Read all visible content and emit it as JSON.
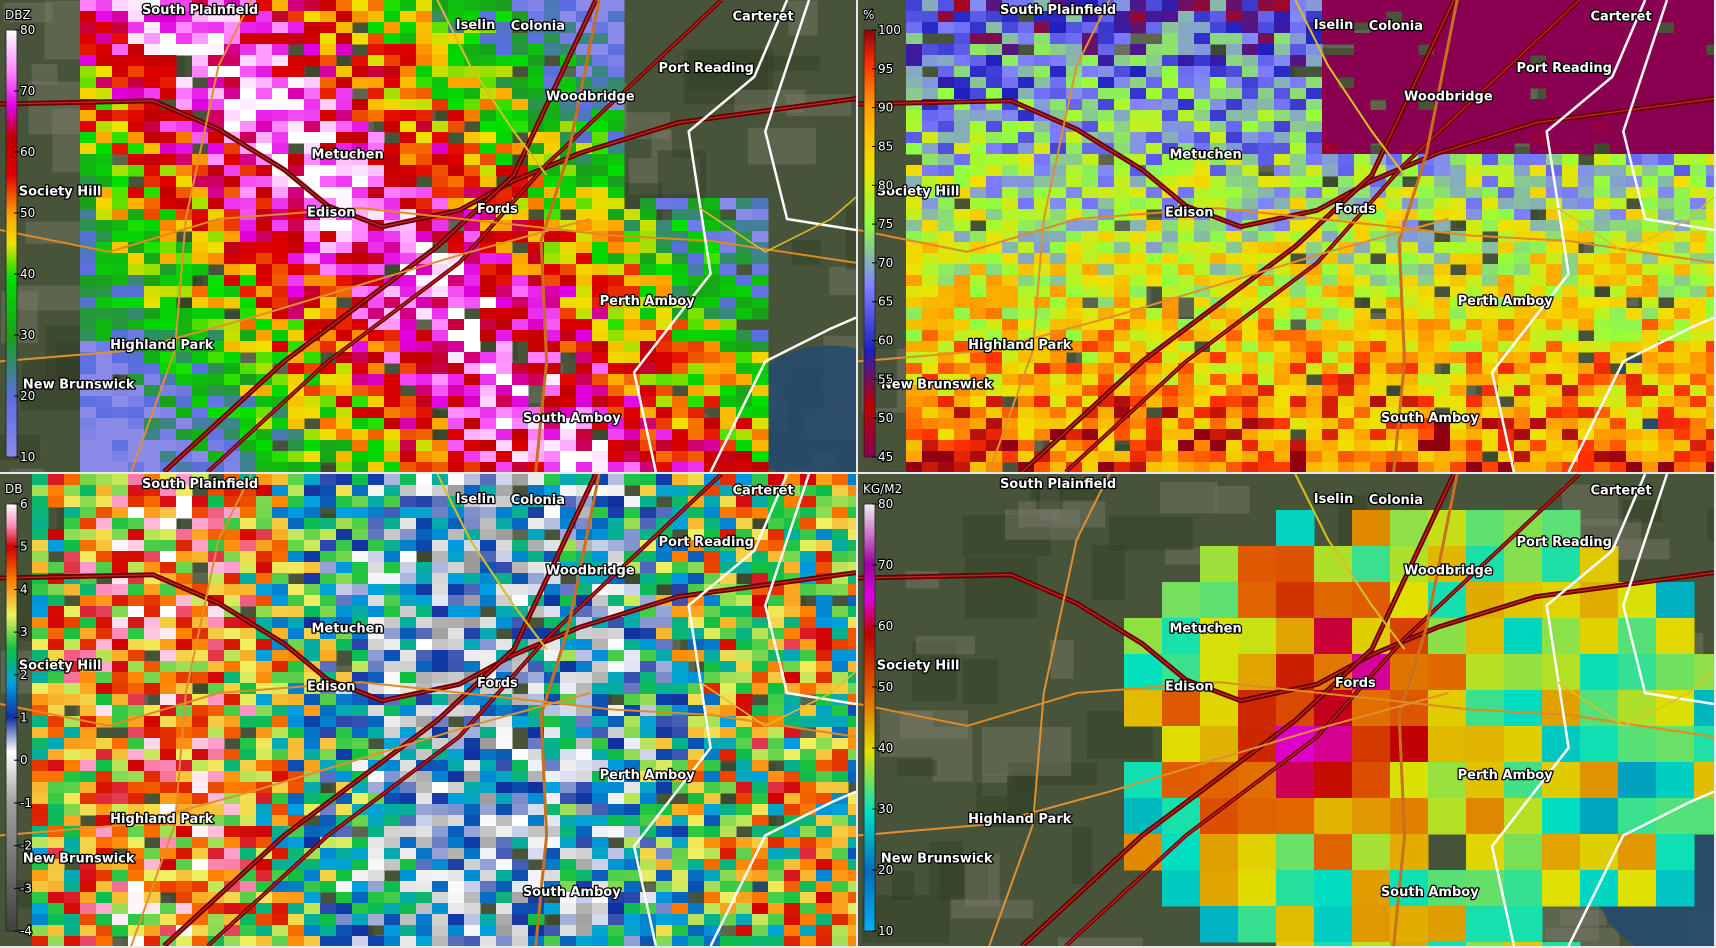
{
  "panels": [
    {
      "unit": "DBZ",
      "scale": {
        "lim": [
          10,
          80
        ],
        "ticks": [
          10,
          20,
          30,
          40,
          50,
          60,
          70,
          80
        ]
      }
    },
    {
      "unit": "%",
      "scale": {
        "lim": [
          45,
          100
        ],
        "ticks": [
          45,
          50,
          55,
          60,
          65,
          70,
          75,
          80,
          85,
          90,
          95,
          100
        ]
      }
    },
    {
      "unit": "DB",
      "scale": {
        "lim": [
          -4,
          6
        ],
        "ticks": [
          -4,
          -3,
          -2,
          -1,
          0,
          1,
          2,
          3,
          4,
          5,
          6
        ]
      }
    },
    {
      "unit": "KG/M2",
      "scale": {
        "lim": [
          10,
          80
        ],
        "ticks": [
          10,
          20,
          30,
          40,
          50,
          60,
          70,
          80
        ]
      }
    }
  ],
  "cities": [
    "South Plainfield",
    "Iselin",
    "Colonia",
    "Carteret",
    "Port Reading",
    "Woodbridge",
    "Metuchen",
    "Society Hill",
    "Edison",
    "Fords",
    "Perth Amboy",
    "Highland Park",
    "New Brunswick",
    "South Amboy"
  ]
}
